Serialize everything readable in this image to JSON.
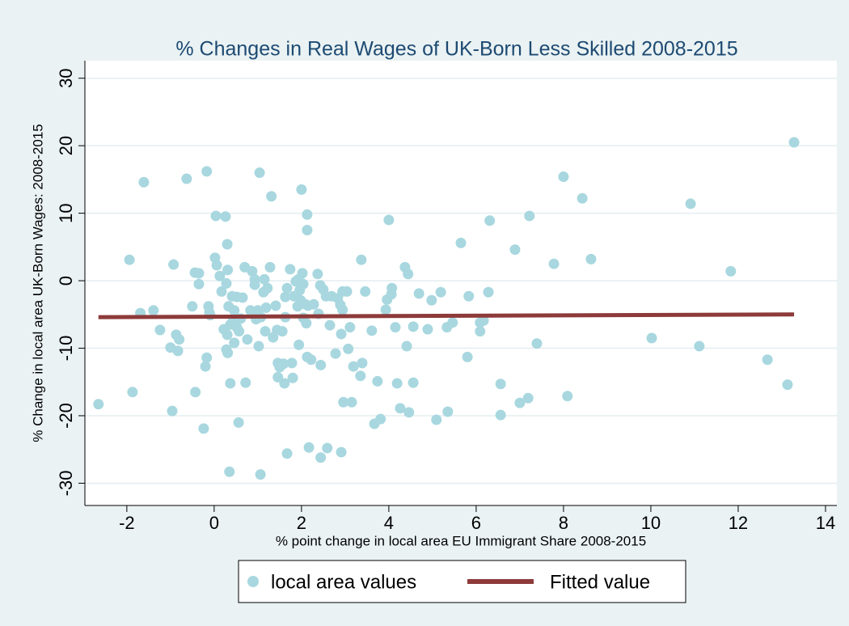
{
  "chart_data": {
    "type": "scatter",
    "title": "% Changes in Real Wages of UK-Born Less Skilled 2008-2015",
    "x_label": "% point change in local area EU Immigrant Share 2008-2015",
    "y_label": "% Change in local area UK-Born Wages: 2008-2015",
    "xlim": [
      -2.96,
      14.26
    ],
    "ylim": [
      -33.3,
      32.6
    ],
    "xticks": [
      -2,
      0,
      2,
      4,
      6,
      8,
      10,
      12,
      14
    ],
    "yticks": [
      -30,
      -20,
      -10,
      0,
      10,
      20,
      30
    ],
    "grid": true,
    "legend": "bottom",
    "series": [
      {
        "name": "local area values",
        "type": "scatter",
        "color": "#a8d7df",
        "x": [
          -2.65,
          -1.94,
          -1.87,
          -1.69,
          -1.61,
          -1.39,
          -1.24,
          -1.0,
          -0.96,
          -0.93,
          -0.87,
          -0.83,
          -0.8,
          -0.63,
          -0.5,
          -0.44,
          -0.43,
          -0.35,
          -0.35,
          -0.24,
          -0.2,
          -0.17,
          -0.17,
          -0.13,
          -0.11,
          -0.09,
          0.02,
          0.04,
          0.06,
          0.13,
          0.17,
          0.22,
          0.26,
          0.28,
          0.28,
          0.3,
          0.3,
          0.31,
          0.31,
          0.33,
          0.37,
          0.37,
          0.35,
          0.41,
          0.44,
          0.46,
          0.46,
          0.52,
          0.52,
          0.56,
          0.57,
          0.61,
          0.65,
          0.7,
          0.72,
          0.76,
          0.83,
          0.87,
          0.93,
          0.93,
          0.96,
          1.0,
          1.04,
          1.02,
          1.06,
          1.07,
          1.13,
          1.15,
          1.17,
          1.19,
          1.22,
          1.28,
          1.31,
          1.35,
          1.41,
          1.44,
          1.46,
          1.46,
          1.5,
          1.56,
          1.59,
          1.61,
          1.63,
          1.63,
          1.67,
          1.67,
          1.74,
          1.78,
          1.8,
          1.83,
          1.87,
          1.91,
          1.93,
          1.94,
          1.96,
          1.98,
          2.0,
          2.02,
          2.04,
          2.04,
          2.09,
          2.11,
          2.13,
          2.13,
          2.13,
          2.15,
          2.17,
          2.22,
          2.28,
          2.37,
          2.39,
          2.43,
          2.44,
          2.44,
          2.5,
          2.56,
          2.59,
          2.65,
          2.69,
          2.78,
          2.83,
          2.89,
          2.91,
          2.91,
          2.94,
          2.94,
          2.96,
          3.04,
          3.07,
          3.11,
          3.15,
          3.19,
          3.35,
          3.37,
          3.39,
          3.46,
          3.61,
          3.67,
          3.74,
          3.81,
          3.93,
          3.96,
          4.0,
          4.06,
          4.07,
          4.15,
          4.19,
          4.26,
          4.37,
          4.41,
          4.44,
          4.46,
          4.56,
          4.56,
          4.69,
          4.89,
          4.98,
          5.09,
          5.19,
          5.33,
          5.35,
          5.46,
          5.65,
          5.8,
          5.83,
          6.09,
          6.09,
          6.17,
          6.28,
          6.31,
          6.56,
          6.56,
          6.89,
          7.0,
          7.19,
          7.22,
          7.39,
          7.78,
          8.0,
          8.09,
          8.43,
          8.63,
          10.02,
          10.91,
          11.11,
          11.83,
          12.67,
          13.13,
          13.28
        ],
        "y": [
          -18.3,
          3.1,
          -16.5,
          -4.8,
          14.6,
          -4.4,
          -7.3,
          -9.9,
          -19.3,
          2.4,
          -8.0,
          -10.4,
          -8.7,
          15.1,
          -3.8,
          1.2,
          -16.5,
          1.1,
          -0.5,
          -21.9,
          -12.7,
          -11.4,
          16.2,
          -3.8,
          -4.7,
          -5.1,
          3.4,
          9.6,
          2.3,
          0.7,
          -1.6,
          -7.2,
          9.5,
          -0.4,
          -10.2,
          5.4,
          -8.0,
          1.6,
          -10.7,
          -3.8,
          -6.5,
          -15.2,
          -28.3,
          -2.3,
          -5.7,
          -4.4,
          -9.2,
          -2.4,
          -6.9,
          -21.0,
          -7.5,
          -5.6,
          -2.5,
          2.0,
          -15.1,
          -8.7,
          -4.4,
          1.4,
          0.2,
          -0.6,
          -5.7,
          -4.4,
          16.0,
          -9.7,
          -28.7,
          -5.4,
          -1.7,
          0.2,
          -7.5,
          -4.0,
          -1.1,
          2.0,
          12.5,
          -8.4,
          -3.7,
          -7.3,
          -12.2,
          -14.3,
          -12.8,
          -7.5,
          -12.3,
          -15.2,
          -5.4,
          -2.4,
          -1.1,
          -25.6,
          1.7,
          -12.2,
          -14.4,
          -2.3,
          -0.1,
          -3.8,
          0.2,
          -9.5,
          -1.4,
          -2.9,
          13.5,
          1.1,
          -5.5,
          -0.5,
          -3.5,
          -6.3,
          9.8,
          7.5,
          -11.3,
          -3.7,
          -24.7,
          -11.7,
          -3.5,
          1.0,
          -4.9,
          -0.7,
          -12.5,
          -26.2,
          -1.3,
          -2.3,
          -24.8,
          -6.6,
          -2.3,
          -10.8,
          -2.6,
          -3.6,
          -7.9,
          -25.4,
          -4.3,
          -1.6,
          -18.0,
          -1.6,
          -10.1,
          -6.9,
          -18.0,
          -12.7,
          -14.1,
          3.1,
          -12.2,
          -1.6,
          -7.4,
          -21.2,
          -14.9,
          -20.5,
          -4.3,
          -2.8,
          9.0,
          -2.0,
          -1.1,
          -6.9,
          -15.2,
          -18.9,
          2.0,
          -9.7,
          1.0,
          -19.5,
          -15.1,
          -6.8,
          -1.9,
          -7.2,
          -2.9,
          -20.6,
          -1.7,
          -6.9,
          -19.4,
          -6.2,
          5.6,
          -11.3,
          -2.3,
          -6.2,
          -7.5,
          -5.9,
          -1.7,
          8.9,
          -15.3,
          -19.9,
          4.6,
          -18.1,
          -17.4,
          9.6,
          -9.3,
          2.5,
          15.4,
          -17.1,
          12.2,
          3.2,
          -8.5,
          11.4,
          -9.7,
          1.4,
          -11.7,
          -15.4,
          20.5
        ]
      },
      {
        "name": "Fitted value",
        "type": "line",
        "color": "#8e3a3a",
        "x": [
          -2.65,
          13.28
        ],
        "y": [
          -5.4,
          -5.0
        ]
      }
    ]
  }
}
